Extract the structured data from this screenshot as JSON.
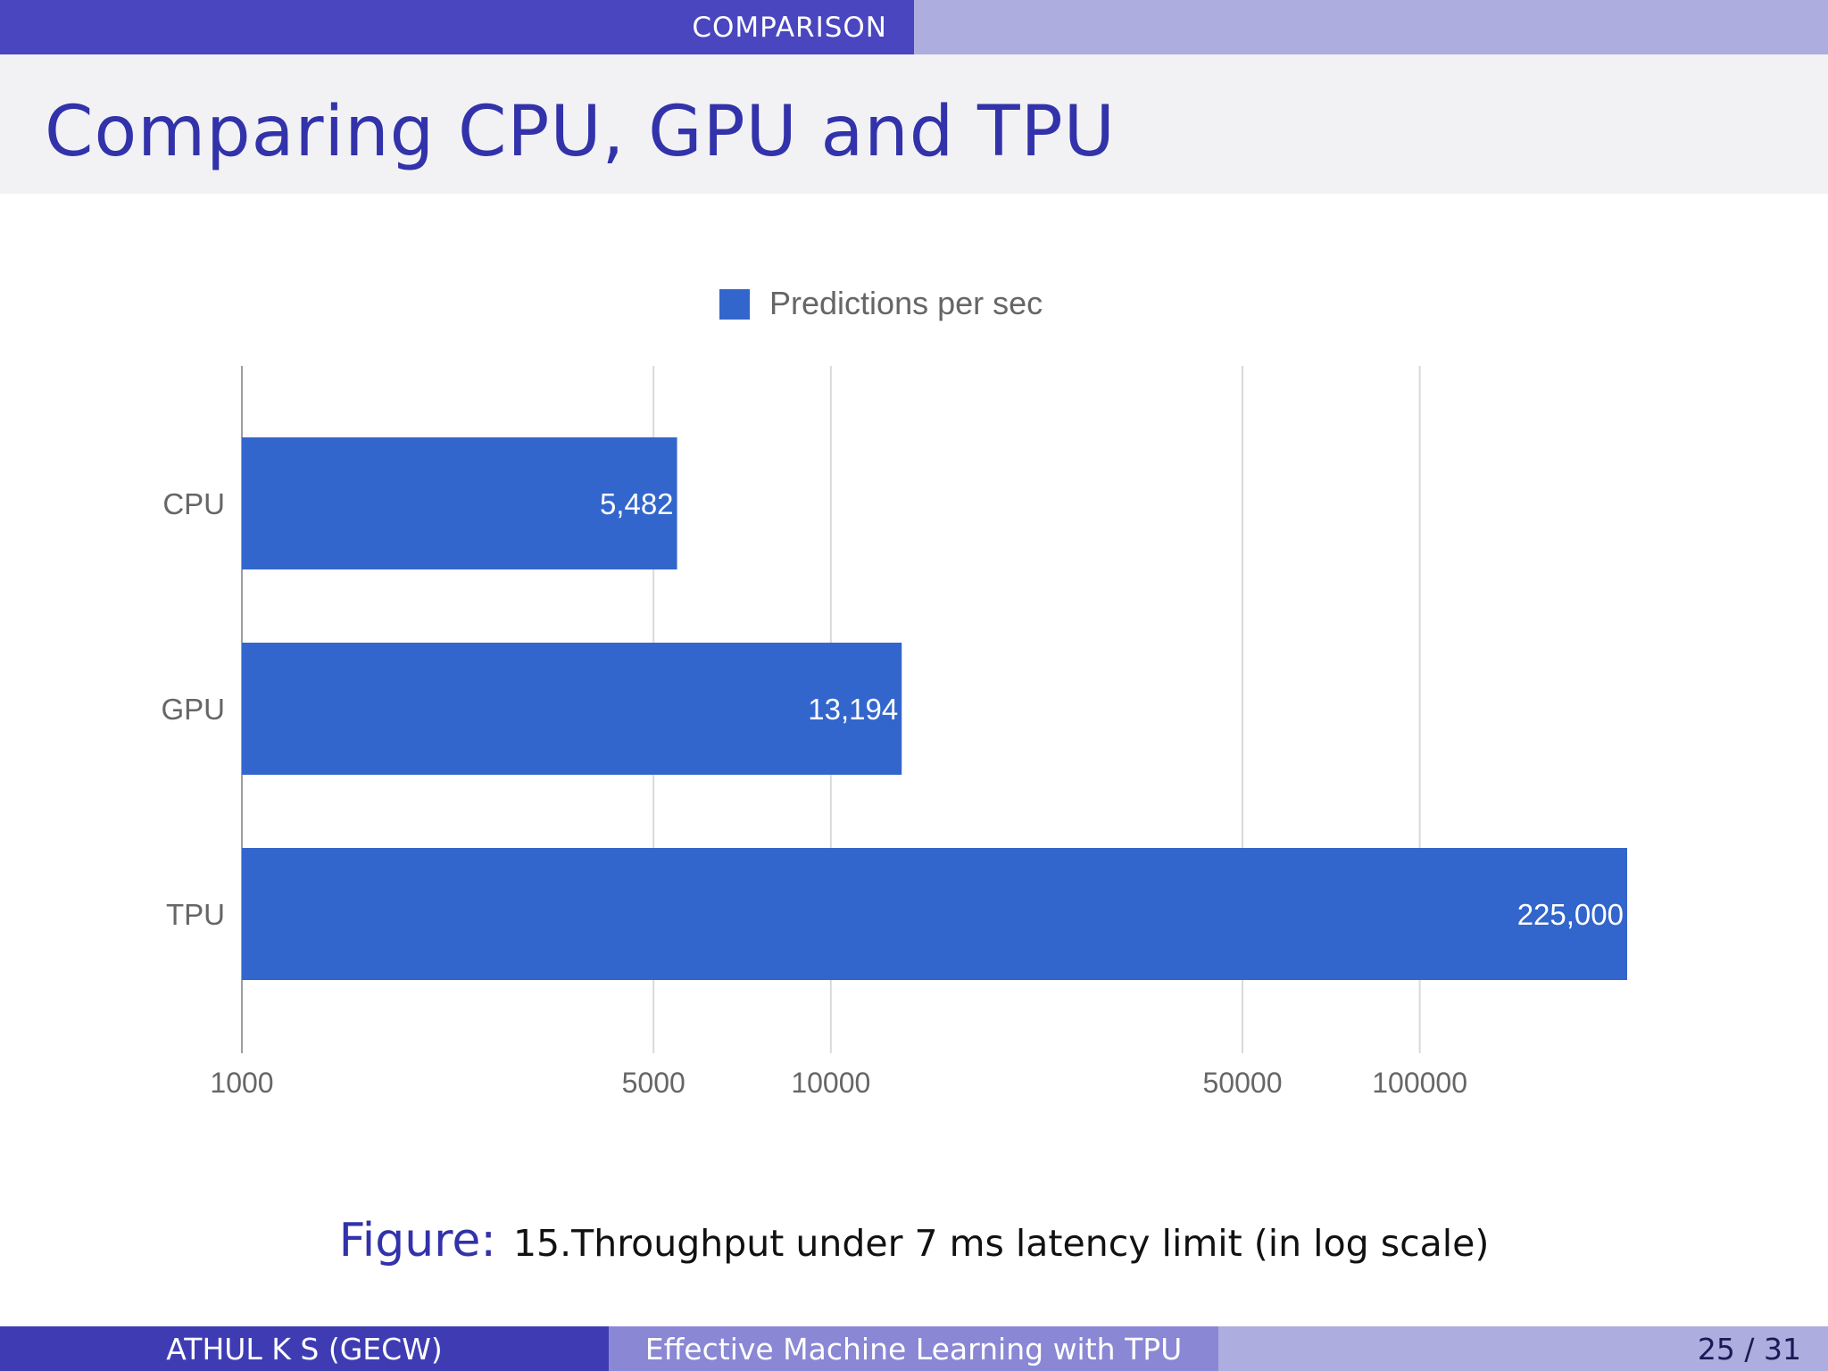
{
  "slide": {
    "section": "COMPARISON",
    "title": "Comparing CPU, GPU and TPU"
  },
  "caption": {
    "label": "Figure:",
    "text": "15.Throughput under 7 ms latency limit (in log scale)"
  },
  "footer": {
    "author": "ATHUL K S  (GECW)",
    "talk_title": "Effective Machine Learning with TPU",
    "page": "25 / 31"
  },
  "chart_data": {
    "type": "bar",
    "orientation": "horizontal",
    "x_scale": "log",
    "categories": [
      "CPU",
      "GPU",
      "TPU"
    ],
    "series": [
      {
        "name": "Predictions per sec",
        "values": [
          5482,
          13194,
          225000
        ]
      }
    ],
    "data_labels": [
      "5,482",
      "13,194",
      "225,000"
    ],
    "x_ticks": [
      1000,
      5000,
      10000,
      50000,
      100000
    ],
    "x_tick_labels": [
      "1000",
      "5000",
      "10000",
      "50000",
      "100000"
    ],
    "xlim": [
      1000,
      225000
    ],
    "legend": "top-center",
    "grid": true,
    "bar_color": "#3366cc"
  }
}
